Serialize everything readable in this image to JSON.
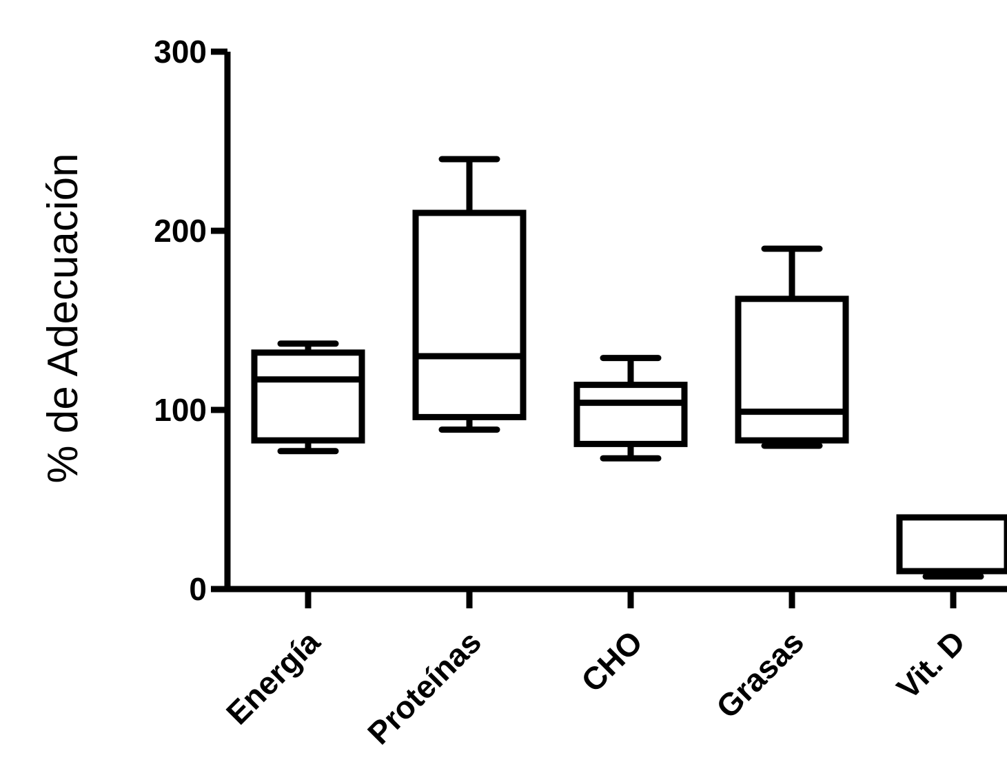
{
  "chart_data": {
    "type": "box",
    "ylabel": "% de Adecuación",
    "xlabel": "",
    "ylim": [
      0,
      300
    ],
    "yticks": [
      0,
      100,
      200,
      300
    ],
    "grid": false,
    "categories": [
      "Energía",
      "Proteínas",
      "CHO",
      "Grasas",
      "Vit. D"
    ],
    "boxes": [
      {
        "category": "Energía",
        "whisker_low": 77,
        "q1": 83,
        "median": 117,
        "q3": 132,
        "whisker_high": 137
      },
      {
        "category": "Proteínas",
        "whisker_low": 89,
        "q1": 96,
        "median": 130,
        "q3": 210,
        "whisker_high": 240
      },
      {
        "category": "CHO",
        "whisker_low": 73,
        "q1": 81,
        "median": 104,
        "q3": 114,
        "whisker_high": 129
      },
      {
        "category": "Grasas",
        "whisker_low": 80,
        "q1": 83,
        "median": 99,
        "q3": 162,
        "whisker_high": 190
      },
      {
        "category": "Vit. D",
        "whisker_low": 7,
        "q1": 10,
        "median": 10,
        "q3": 40,
        "whisker_high": 40
      }
    ]
  }
}
